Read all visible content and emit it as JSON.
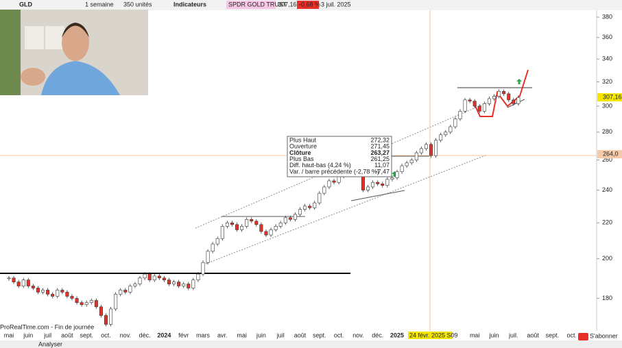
{
  "toolbar": {
    "symbol": "GLD",
    "period": "1 semaine",
    "units": "350 unités",
    "indicators": "Indicateurs",
    "instrument": "SPDR GOLD TRUST",
    "price": "307,16",
    "change": "-0,68 %",
    "date": "3 juil. 2025"
  },
  "chart_data": {
    "type": "candlestick",
    "log_scale": true,
    "closes": [
      190,
      188,
      186,
      189,
      186,
      185,
      183,
      184,
      182,
      181,
      184,
      183,
      181,
      180,
      178,
      177,
      178,
      179,
      176,
      172,
      168,
      175,
      182,
      184,
      183,
      186,
      187,
      190,
      192,
      189,
      191,
      190,
      189,
      187,
      188,
      186,
      187,
      185,
      189,
      192,
      198,
      204,
      208,
      211,
      218,
      220,
      219,
      216,
      218,
      222,
      221,
      219,
      215,
      213,
      216,
      218,
      220,
      223,
      222,
      225,
      228,
      230,
      229,
      232,
      238,
      242,
      246,
      245,
      249,
      252,
      255,
      253,
      250,
      240,
      242,
      245,
      244,
      243,
      247,
      248,
      252,
      256,
      258,
      260,
      265,
      268,
      271,
      263,
      274,
      278,
      280,
      284,
      290,
      296,
      305,
      304,
      300,
      296,
      302,
      306,
      308,
      312,
      310,
      305,
      302,
      307
    ],
    "up_color": "#ffffff",
    "down_color": "#e8302a",
    "ylim": [
      166,
      392
    ],
    "yticks": [
      180,
      200,
      220,
      240,
      260,
      280,
      300,
      320,
      340,
      360,
      380
    ],
    "x_labels": [
      "mai",
      "juin",
      "juil",
      "août",
      "sept.",
      "oct.",
      "nov.",
      "déc.",
      "2024",
      "févr",
      "mars",
      "avr.",
      "mai",
      "juin",
      "juil",
      "août",
      "sept.",
      "oct.",
      "nov.",
      "déc.",
      "2025",
      null,
      null,
      null,
      "mai",
      "juin",
      "juil.",
      "août",
      "sept.",
      "oct."
    ],
    "last_price": {
      "value": 307.16,
      "label": "307,16"
    },
    "cursor_price": {
      "value": 264,
      "label": "264,0"
    },
    "cursor_date": "24 févr. 2025 S09",
    "tooltip": [
      [
        "Plus Haut",
        "272,32"
      ],
      [
        "Ouverture",
        "271,45"
      ],
      [
        "Clôture",
        "263,27"
      ],
      [
        "Plus Bas",
        "261,25"
      ],
      [
        "Diff. haut-bas (4,24 %)",
        "11,07"
      ],
      [
        "Var. / barre précédente (-2,78 %)",
        "-7,47"
      ]
    ],
    "source": "ProRealTime.com - Fin de journée"
  },
  "bottom_bar": {
    "analyse": "Analyser",
    "subscribe": "S'abonner"
  }
}
